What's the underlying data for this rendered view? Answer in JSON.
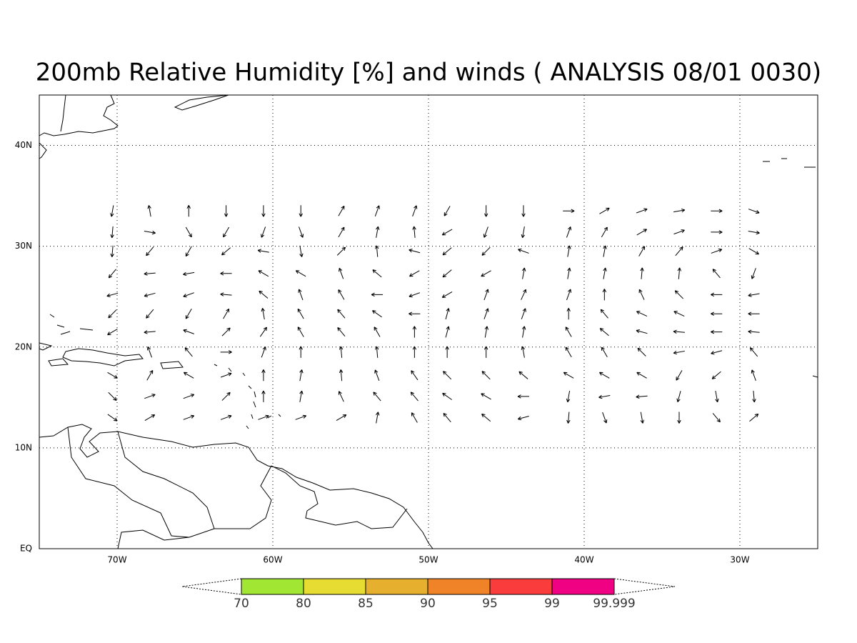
{
  "title": "200mb Relative Humidity [%] and winds ( ANALYSIS 08/01 0030)",
  "map": {
    "xlim": [
      -75,
      -25
    ],
    "ylim": [
      0,
      45
    ],
    "grid": true,
    "xticks": [
      {
        "value": -70,
        "label": "70W"
      },
      {
        "value": -60,
        "label": "60W"
      },
      {
        "value": -50,
        "label": "50W"
      },
      {
        "value": -40,
        "label": "40W"
      },
      {
        "value": -30,
        "label": "30W"
      }
    ],
    "yticks": [
      {
        "value": 0,
        "label": "EQ"
      },
      {
        "value": 10,
        "label": "10N"
      },
      {
        "value": 20,
        "label": "20N"
      },
      {
        "value": 30,
        "label": "30N"
      },
      {
        "value": 40,
        "label": "40N"
      }
    ]
  },
  "winds": {
    "lon": [
      -70.3,
      -67.9,
      -65.4,
      -63,
      -60.6,
      -58.2,
      -55.6,
      -53.3,
      -50.9,
      -48.8,
      -46.3,
      -43.9,
      -41,
      -38.7,
      -36.3,
      -33.9,
      -31.5,
      -29.1
    ],
    "lat": [
      33.5,
      31.4,
      29.5,
      27.3,
      25.2,
      23.3,
      21.5,
      19.5,
      17.2,
      15.1,
      13.0
    ],
    "direction": [
      [
        260,
        100,
        90,
        270,
        270,
        270,
        60,
        70,
        70,
        240,
        270,
        270,
        0,
        30,
        20,
        10,
        0,
        340
      ],
      [
        265,
        350,
        300,
        240,
        250,
        290,
        60,
        80,
        95,
        210,
        250,
        260,
        70,
        60,
        30,
        20,
        0,
        350
      ],
      [
        265,
        230,
        240,
        220,
        170,
        280,
        45,
        95,
        165,
        220,
        225,
        160,
        80,
        80,
        60,
        50,
        20,
        330
      ],
      [
        230,
        185,
        190,
        180,
        150,
        150,
        110,
        140,
        210,
        220,
        210,
        80,
        80,
        80,
        85,
        85,
        130,
        250
      ],
      [
        195,
        195,
        200,
        175,
        140,
        110,
        120,
        180,
        200,
        210,
        70,
        65,
        70,
        90,
        115,
        135,
        180,
        190
      ],
      [
        225,
        230,
        240,
        60,
        100,
        120,
        130,
        145,
        180,
        75,
        70,
        70,
        90,
        130,
        155,
        155,
        180,
        180
      ],
      [
        210,
        185,
        160,
        45,
        55,
        120,
        130,
        120,
        90,
        75,
        80,
        80,
        120,
        140,
        165,
        175,
        180,
        175
      ],
      [
        null,
        110,
        130,
        0,
        70,
        90,
        95,
        95,
        90,
        90,
        90,
        100,
        120,
        120,
        135,
        190,
        195,
        130
      ],
      [
        330,
        60,
        150,
        20,
        90,
        80,
        95,
        110,
        125,
        135,
        135,
        140,
        150,
        150,
        150,
        240,
        220,
        110
      ],
      [
        315,
        20,
        20,
        45,
        90,
        80,
        115,
        130,
        130,
        145,
        150,
        180,
        260,
        190,
        185,
        255,
        280,
        275
      ],
      [
        325,
        30,
        20,
        20,
        20,
        20,
        30,
        80,
        120,
        130,
        140,
        195,
        265,
        290,
        280,
        270,
        310,
        40
      ]
    ]
  },
  "colorbar": {
    "levels": [
      70,
      80,
      85,
      90,
      95,
      99,
      99.999
    ],
    "colors": [
      "#a0e632",
      "#e6dc32",
      "#e6af2d",
      "#f08228",
      "#fa3c3c",
      "#f00082"
    ]
  }
}
